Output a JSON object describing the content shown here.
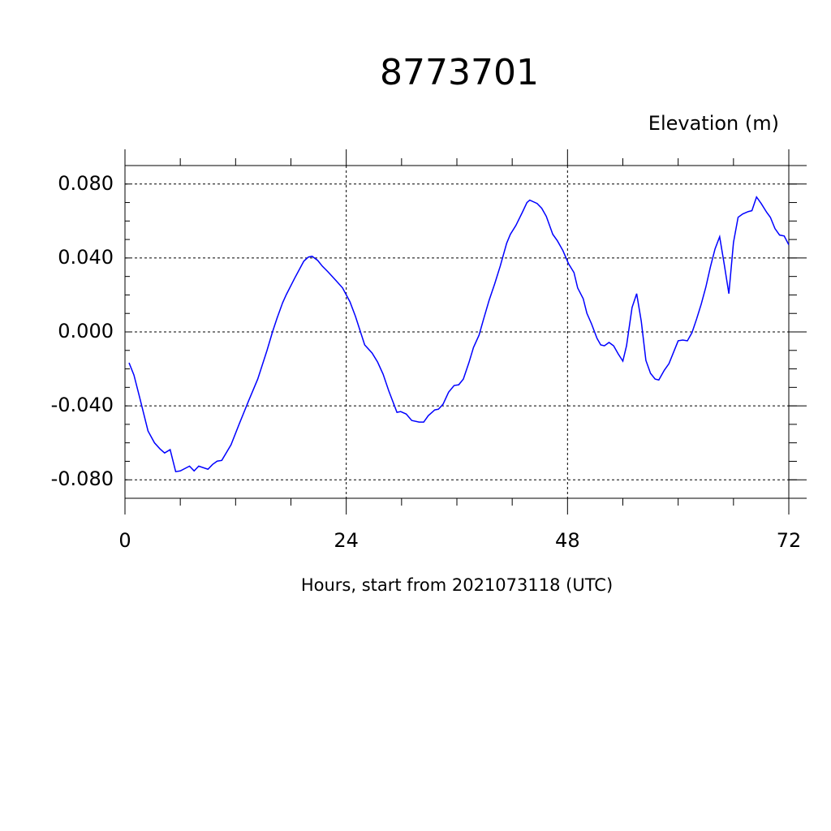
{
  "chart_data": {
    "type": "line",
    "title": "8773701",
    "subtitle": "Elevation (m)",
    "x_label": "Hours, start from 2021073118 (UTC)",
    "xlim": [
      0,
      72
    ],
    "xticks": [
      0,
      24,
      48,
      72
    ],
    "ylim": [
      -0.09,
      0.09
    ],
    "yticks": [
      {
        "value": -0.08,
        "label": "-0.080"
      },
      {
        "value": -0.04,
        "label": "-0.040"
      },
      {
        "value": 0,
        "label": "0.000"
      },
      {
        "value": 0.04,
        "label": "0.040"
      },
      {
        "value": 0.08,
        "label": "0.080"
      }
    ],
    "grid": true,
    "x": [
      0.44,
      0.97,
      1.6,
      2.5,
      3.2,
      3.8,
      4.3,
      4.9,
      5.5,
      6.0,
      7.0,
      7.5,
      8.0,
      9.0,
      9.5,
      10.0,
      10.5,
      11.5,
      12.4,
      13.4,
      14.4,
      15.4,
      16.0,
      16.5,
      17.1,
      17.5,
      18.4,
      19.4,
      19.9,
      20.3,
      20.9,
      21.4,
      22.0,
      22.9,
      23.6,
      24.4,
      25.0,
      26.0,
      26.8,
      27.4,
      28.0,
      28.6,
      29.5,
      29.9,
      30.5,
      31.1,
      31.9,
      32.4,
      32.9,
      33.6,
      34.0,
      34.5,
      35.1,
      35.7,
      36.2,
      36.7,
      37.3,
      37.8,
      38.4,
      38.9,
      39.5,
      40.1,
      40.7,
      41.4,
      41.8,
      42.4,
      43.1,
      43.6,
      43.9,
      44.7,
      45.2,
      45.7,
      46.4,
      46.9,
      47.5,
      48.1,
      48.7,
      49.1,
      49.7,
      50.1,
      50.6,
      51.2,
      51.6,
      52.0,
      52.5,
      53.0,
      53.5,
      54.0,
      54.4,
      55.0,
      55.5,
      56.0,
      56.5,
      57.0,
      57.5,
      57.9,
      58.5,
      59.0,
      59.5,
      60.0,
      60.5,
      61.0,
      61.5,
      62.0,
      62.5,
      63.0,
      63.5,
      64.0,
      64.5,
      65.0,
      65.5,
      66.0,
      66.5,
      67.0,
      67.6,
      68.0,
      68.5,
      69.0,
      69.6,
      70.0,
      70.5,
      71.0,
      71.5,
      72.0
    ],
    "series": [
      {
        "color": "#0000ff",
        "values": [
          -0.0167,
          -0.0233,
          -0.0356,
          -0.0536,
          -0.06,
          -0.0633,
          -0.0655,
          -0.0637,
          -0.0756,
          -0.0752,
          -0.0726,
          -0.0752,
          -0.0726,
          -0.0743,
          -0.0717,
          -0.0699,
          -0.0695,
          -0.0611,
          -0.0497,
          -0.0374,
          -0.0255,
          -0.0101,
          0,
          0.0075,
          0.0158,
          0.0202,
          0.029,
          0.0383,
          0.0405,
          0.0409,
          0.0387,
          0.0356,
          0.0326,
          0.0277,
          0.0238,
          0.0163,
          0.0084,
          -0.007,
          -0.0114,
          -0.0163,
          -0.0229,
          -0.0317,
          -0.0435,
          -0.0431,
          -0.0444,
          -0.0479,
          -0.0488,
          -0.0488,
          -0.0453,
          -0.0422,
          -0.0418,
          -0.0391,
          -0.0326,
          -0.029,
          -0.0286,
          -0.0255,
          -0.0167,
          -0.0084,
          -0.0018,
          0.007,
          0.0172,
          0.026,
          0.0356,
          0.048,
          0.0528,
          0.0576,
          0.0647,
          0.07,
          0.0713,
          0.0695,
          0.0669,
          0.0625,
          0.0528,
          0.0493,
          0.044,
          0.037,
          0.0321,
          0.0238,
          0.018,
          0.0101,
          0.0044,
          -0.0035,
          -0.007,
          -0.0075,
          -0.0057,
          -0.0075,
          -0.0119,
          -0.0158,
          -0.0075,
          0.0132,
          0.0207,
          0.0057,
          -0.0154,
          -0.0224,
          -0.0255,
          -0.026,
          -0.0207,
          -0.0172,
          -0.011,
          -0.0048,
          -0.0044,
          -0.0048,
          -0.0004,
          0.007,
          0.015,
          0.0242,
          0.0352,
          0.0449,
          0.0515,
          0.0365,
          0.0207,
          0.0484,
          0.062,
          0.0638,
          0.0651,
          0.0656,
          0.073,
          0.0695,
          0.0647,
          0.062,
          0.0559,
          0.0524,
          0.0519,
          0.0471
        ]
      }
    ]
  }
}
